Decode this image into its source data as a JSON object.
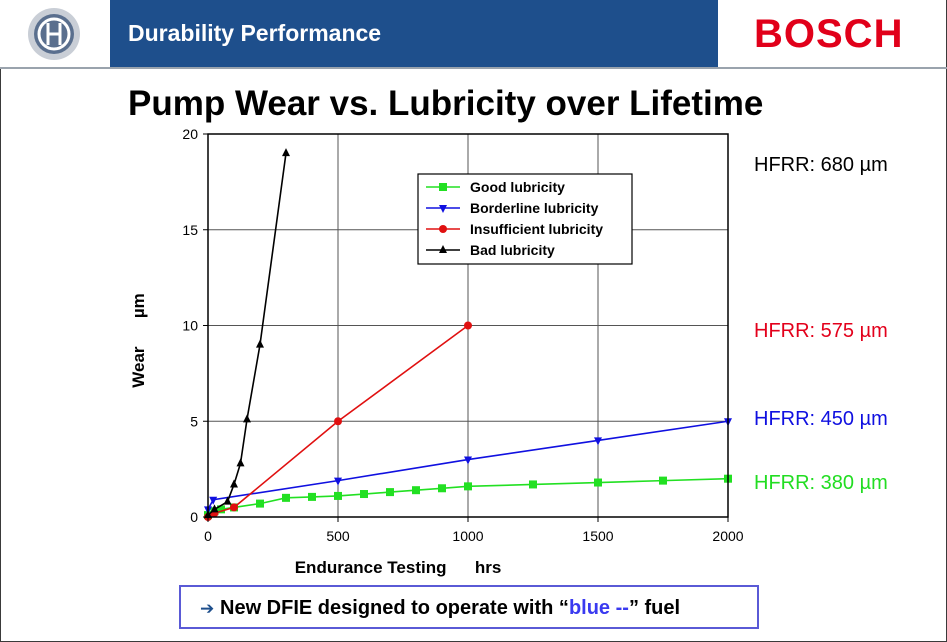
{
  "header": {
    "title": "Durability Performance",
    "brand": "BOSCH"
  },
  "page_title": "Pump Wear vs. Lubricity over Lifetime",
  "hfrr_labels": [
    {
      "text": "HFRR: 680 µm",
      "color": "#000000"
    },
    {
      "text": "HFRR: 575 µm",
      "color": "#e3001b"
    },
    {
      "text": "HFRR: 450 µm",
      "color": "#1010e0"
    },
    {
      "text": "HFRR: 380 µm",
      "color": "#22dd22"
    }
  ],
  "callout": {
    "arrow": "➔",
    "prefix": "New DFIE designed to operate with “",
    "highlight": "blue --",
    "suffix": "” fuel",
    "highlight_color": "#3a3af0"
  },
  "chart_data": {
    "type": "line",
    "xlabel": "Endurance Testing      hrs",
    "ylabel": "Wear      µm",
    "xlim": [
      0,
      2000
    ],
    "ylim": [
      0,
      20
    ],
    "xticks": [
      0,
      500,
      1000,
      1500,
      2000
    ],
    "yticks": [
      0,
      5,
      10,
      15,
      20
    ],
    "grid": true,
    "legend_position": "top-center",
    "series": [
      {
        "name": "Good lubricity",
        "color": "#22e022",
        "marker": "square",
        "x": [
          0,
          25,
          50,
          100,
          200,
          300,
          400,
          500,
          600,
          700,
          800,
          900,
          1000,
          1250,
          1500,
          1750,
          2000
        ],
        "y": [
          0.1,
          0.3,
          0.4,
          0.5,
          0.7,
          1.0,
          1.05,
          1.1,
          1.2,
          1.3,
          1.4,
          1.5,
          1.6,
          1.7,
          1.8,
          1.9,
          2.0
        ]
      },
      {
        "name": "Borderline lubricity",
        "color": "#1010e0",
        "marker": "triangle-down",
        "x": [
          0,
          20,
          500,
          1000,
          1500,
          2000
        ],
        "y": [
          0.4,
          0.9,
          1.9,
          3.0,
          4.0,
          5.0
        ]
      },
      {
        "name": "Insufficient lubricity",
        "color": "#e01010",
        "marker": "circle",
        "x": [
          0,
          25,
          100,
          500,
          1000
        ],
        "y": [
          0.0,
          0.2,
          0.5,
          5.0,
          10.0
        ]
      },
      {
        "name": "Bad lubricity",
        "color": "#000000",
        "marker": "triangle-up",
        "x": [
          0,
          25,
          75,
          100,
          125,
          150,
          200,
          300
        ],
        "y": [
          0.1,
          0.4,
          0.8,
          1.7,
          2.8,
          5.1,
          9.0,
          19.0
        ]
      }
    ]
  }
}
